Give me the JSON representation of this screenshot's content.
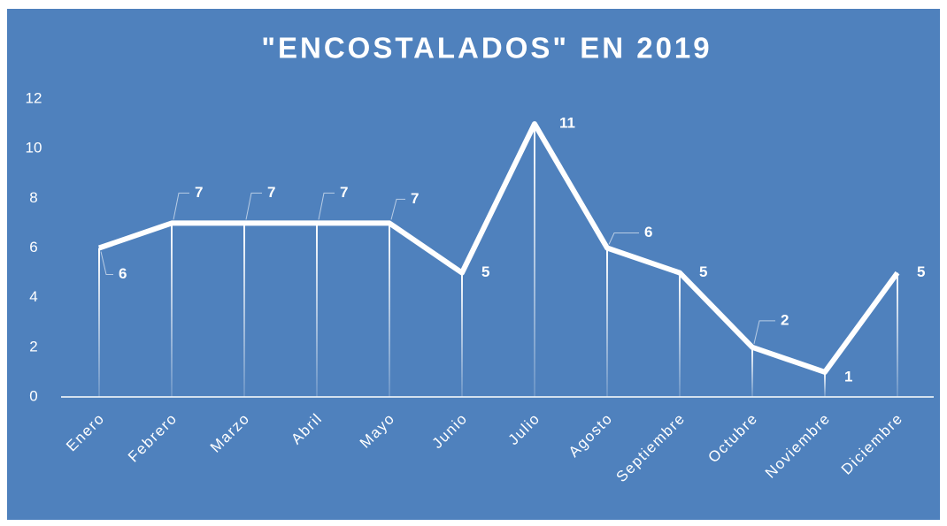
{
  "chart_data": {
    "type": "line",
    "title": "\"ENCOSTALADOS\" EN 2019",
    "categories": [
      "Enero",
      "Febrero",
      "Marzo",
      "Abril",
      "Mayo",
      "Junio",
      "Julio",
      "Agosto",
      "Septiembre",
      "Octubre",
      "Noviembre",
      "Diciembre"
    ],
    "values": [
      6,
      7,
      7,
      7,
      7,
      5,
      11,
      6,
      5,
      2,
      1,
      5
    ],
    "color": "#ffffff",
    "ylim": [
      0,
      12
    ],
    "yticks": [
      0,
      2,
      4,
      6,
      8,
      10,
      12
    ],
    "grid": false,
    "drop_lines": true
  }
}
